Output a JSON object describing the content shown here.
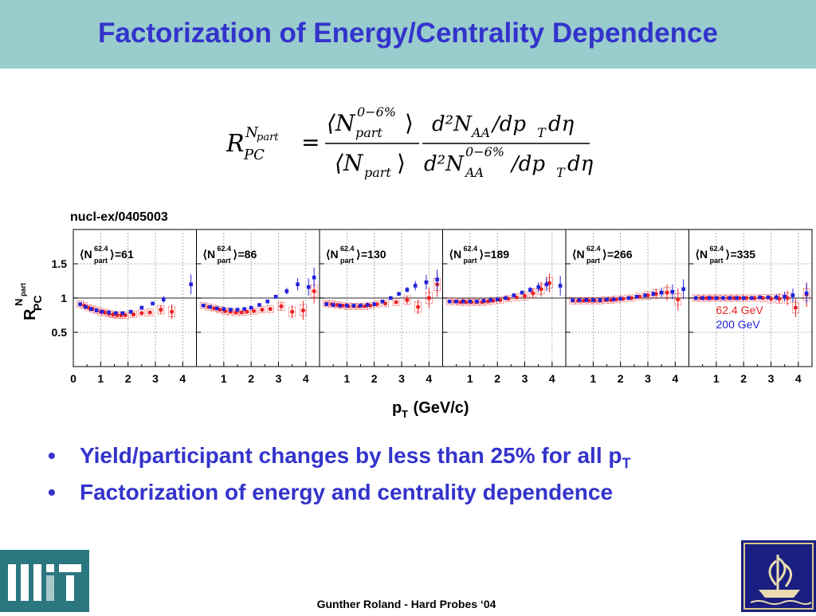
{
  "slide": {
    "title": "Factorization of Energy/Centrality Dependence",
    "reference": "nucl-ex/0405003",
    "bullets": [
      {
        "text": "Yield/participant changes by less than 25% for all p",
        "sub": "T"
      },
      {
        "text": "Factorization of energy and centrality dependence",
        "sub": ""
      }
    ],
    "footer": "Gunther Roland - Hard Probes ‘04"
  },
  "formula": {
    "lhs_base": "R",
    "lhs_sub": "PC",
    "lhs_sup": "N",
    "lhs_sup_sub": "part",
    "eq": "=",
    "num1": "⟨N",
    "num1_sup": "0−6%",
    "num1_sub": "part",
    "num1_close": "⟩",
    "den1": "⟨N",
    "den1_sub": "part",
    "den1_close": "⟩",
    "num2": "d²N",
    "num2_sub": "AA",
    "num2_rest": "/dp",
    "num2_rest_sub": "T",
    "num2_end": "dη",
    "den2": "d²N",
    "den2_sup": "0−6%",
    "den2_sub": "AA",
    "den2_rest": "/dp",
    "den2_rest_sub": "T",
    "den2_end": "dη"
  },
  "logos": {
    "left": "mit-logo",
    "right": "ship-logo"
  },
  "colors": {
    "title_bg": "#99cccc",
    "title_text": "#3333cc",
    "red": "#ee2222",
    "blue": "#2222dd",
    "mit": "#2b7780",
    "ship_bg": "#1a1e80"
  },
  "chart_data": {
    "type": "scatter",
    "ylabel_main": "R",
    "ylabel_sub": "PC",
    "ylabel_sup": "N",
    "ylabel_sup_sub": "part",
    "xlabel_main": "p",
    "xlabel_sub": "T",
    "xlabel_rest": " (GeV/c)",
    "xlim": [
      0,
      4.5
    ],
    "ylim": [
      0,
      2
    ],
    "yticks": [
      0.5,
      1,
      1.5
    ],
    "ytick_labels": [
      "0.5",
      "1",
      "1.5"
    ],
    "xtick_labels_first": [
      "0",
      "1",
      "2",
      "3",
      "4"
    ],
    "xtick_labels": [
      "1",
      "2",
      "3",
      "4"
    ],
    "reference_line": 1,
    "legend": {
      "entries": [
        "62.4 GeV",
        "200 GeV"
      ],
      "position": "right panel, lower right"
    },
    "panel_label_parts": {
      "open": "⟨N",
      "sup": "62.4",
      "sub": "part",
      "close": "⟩"
    },
    "panels": [
      {
        "npart": "=61",
        "red": [
          [
            0.25,
            0.91
          ],
          [
            0.4,
            0.89
          ],
          [
            0.55,
            0.86
          ],
          [
            0.7,
            0.84
          ],
          [
            0.85,
            0.82
          ],
          [
            1.0,
            0.8
          ],
          [
            1.15,
            0.79
          ],
          [
            1.3,
            0.77
          ],
          [
            1.45,
            0.76
          ],
          [
            1.6,
            0.75
          ],
          [
            1.75,
            0.75
          ],
          [
            1.9,
            0.75
          ],
          [
            2.2,
            0.76
          ],
          [
            2.5,
            0.78
          ],
          [
            2.8,
            0.79
          ],
          [
            3.2,
            0.83
          ],
          [
            3.6,
            0.8
          ]
        ],
        "blue": [
          [
            0.25,
            0.91
          ],
          [
            0.45,
            0.87
          ],
          [
            0.65,
            0.84
          ],
          [
            0.85,
            0.82
          ],
          [
            1.05,
            0.8
          ],
          [
            1.3,
            0.79
          ],
          [
            1.55,
            0.78
          ],
          [
            1.8,
            0.78
          ],
          [
            2.1,
            0.8
          ],
          [
            2.5,
            0.86
          ],
          [
            2.9,
            0.92
          ],
          [
            3.3,
            0.98
          ],
          [
            4.3,
            1.2
          ]
        ]
      },
      {
        "npart": "=86",
        "red": [
          [
            0.25,
            0.89
          ],
          [
            0.45,
            0.87
          ],
          [
            0.65,
            0.85
          ],
          [
            0.85,
            0.83
          ],
          [
            1.05,
            0.81
          ],
          [
            1.25,
            0.8
          ],
          [
            1.45,
            0.79
          ],
          [
            1.65,
            0.79
          ],
          [
            1.85,
            0.8
          ],
          [
            2.1,
            0.81
          ],
          [
            2.4,
            0.83
          ],
          [
            2.7,
            0.84
          ],
          [
            3.1,
            0.88
          ],
          [
            3.5,
            0.8
          ],
          [
            3.9,
            0.82
          ],
          [
            4.3,
            1.1
          ]
        ],
        "blue": [
          [
            0.25,
            0.89
          ],
          [
            0.5,
            0.87
          ],
          [
            0.75,
            0.85
          ],
          [
            1.0,
            0.84
          ],
          [
            1.25,
            0.83
          ],
          [
            1.5,
            0.83
          ],
          [
            1.75,
            0.84
          ],
          [
            2.0,
            0.86
          ],
          [
            2.3,
            0.9
          ],
          [
            2.6,
            0.95
          ],
          [
            2.9,
            1.02
          ],
          [
            3.3,
            1.1
          ],
          [
            3.7,
            1.2
          ],
          [
            4.1,
            1.16
          ],
          [
            4.3,
            1.3
          ]
        ]
      },
      {
        "npart": "=130",
        "red": [
          [
            0.25,
            0.92
          ],
          [
            0.45,
            0.91
          ],
          [
            0.65,
            0.9
          ],
          [
            0.85,
            0.89
          ],
          [
            1.05,
            0.88
          ],
          [
            1.25,
            0.88
          ],
          [
            1.45,
            0.88
          ],
          [
            1.65,
            0.88
          ],
          [
            1.85,
            0.89
          ],
          [
            2.1,
            0.91
          ],
          [
            2.4,
            0.92
          ],
          [
            2.8,
            0.94
          ],
          [
            3.2,
            0.97
          ],
          [
            3.6,
            0.87
          ],
          [
            4.0,
            1.0
          ],
          [
            4.3,
            1.2
          ]
        ],
        "blue": [
          [
            0.25,
            0.91
          ],
          [
            0.5,
            0.9
          ],
          [
            0.75,
            0.89
          ],
          [
            1.0,
            0.89
          ],
          [
            1.25,
            0.89
          ],
          [
            1.5,
            0.89
          ],
          [
            1.75,
            0.9
          ],
          [
            2.0,
            0.91
          ],
          [
            2.3,
            0.95
          ],
          [
            2.6,
            1.0
          ],
          [
            2.9,
            1.06
          ],
          [
            3.2,
            1.12
          ],
          [
            3.5,
            1.18
          ],
          [
            3.9,
            1.23
          ],
          [
            4.3,
            1.27
          ]
        ]
      },
      {
        "npart": "=189",
        "red": [
          [
            0.25,
            0.95
          ],
          [
            0.45,
            0.95
          ],
          [
            0.65,
            0.94
          ],
          [
            0.85,
            0.94
          ],
          [
            1.05,
            0.94
          ],
          [
            1.25,
            0.94
          ],
          [
            1.45,
            0.94
          ],
          [
            1.65,
            0.95
          ],
          [
            1.85,
            0.96
          ],
          [
            2.1,
            0.97
          ],
          [
            2.4,
            0.99
          ],
          [
            2.7,
            1.01
          ],
          [
            3.0,
            1.03
          ],
          [
            3.3,
            1.07
          ],
          [
            3.6,
            1.13
          ],
          [
            3.9,
            1.22
          ]
        ],
        "blue": [
          [
            0.25,
            0.95
          ],
          [
            0.5,
            0.95
          ],
          [
            0.75,
            0.95
          ],
          [
            1.0,
            0.95
          ],
          [
            1.25,
            0.95
          ],
          [
            1.5,
            0.96
          ],
          [
            1.75,
            0.97
          ],
          [
            2.0,
            0.98
          ],
          [
            2.3,
            1.0
          ],
          [
            2.6,
            1.04
          ],
          [
            2.9,
            1.08
          ],
          [
            3.2,
            1.12
          ],
          [
            3.5,
            1.16
          ],
          [
            3.8,
            1.2
          ],
          [
            4.3,
            1.18
          ]
        ]
      },
      {
        "npart": "=266",
        "red": [
          [
            0.25,
            0.96
          ],
          [
            0.45,
            0.96
          ],
          [
            0.65,
            0.96
          ],
          [
            0.85,
            0.96
          ],
          [
            1.05,
            0.96
          ],
          [
            1.25,
            0.96
          ],
          [
            1.45,
            0.97
          ],
          [
            1.65,
            0.97
          ],
          [
            1.85,
            0.98
          ],
          [
            2.1,
            0.99
          ],
          [
            2.4,
            1.0
          ],
          [
            2.7,
            1.02
          ],
          [
            3.0,
            1.04
          ],
          [
            3.3,
            1.06
          ],
          [
            3.7,
            1.08
          ],
          [
            4.1,
            0.98
          ]
        ],
        "blue": [
          [
            0.25,
            0.97
          ],
          [
            0.5,
            0.97
          ],
          [
            0.75,
            0.97
          ],
          [
            1.0,
            0.97
          ],
          [
            1.25,
            0.97
          ],
          [
            1.5,
            0.98
          ],
          [
            1.75,
            0.98
          ],
          [
            2.0,
            0.99
          ],
          [
            2.3,
            1.0
          ],
          [
            2.6,
            1.02
          ],
          [
            2.9,
            1.04
          ],
          [
            3.2,
            1.06
          ],
          [
            3.5,
            1.08
          ],
          [
            3.9,
            1.09
          ],
          [
            4.3,
            1.13
          ]
        ]
      },
      {
        "npart": "=335",
        "red": [
          [
            0.25,
            1.0
          ],
          [
            0.45,
            1.0
          ],
          [
            0.65,
            1.0
          ],
          [
            0.85,
            1.0
          ],
          [
            1.05,
            1.0
          ],
          [
            1.25,
            1.0
          ],
          [
            1.45,
            1.0
          ],
          [
            1.65,
            1.0
          ],
          [
            1.85,
            1.0
          ],
          [
            2.1,
            1.0
          ],
          [
            2.4,
            1.0
          ],
          [
            2.7,
            1.0
          ],
          [
            3.0,
            0.99
          ],
          [
            3.3,
            0.99
          ],
          [
            3.6,
            1.0
          ],
          [
            3.9,
            0.86
          ],
          [
            4.3,
            1.05
          ]
        ],
        "blue": [
          [
            0.25,
            1.0
          ],
          [
            0.5,
            1.0
          ],
          [
            0.75,
            1.0
          ],
          [
            1.0,
            1.0
          ],
          [
            1.25,
            1.0
          ],
          [
            1.5,
            1.0
          ],
          [
            1.75,
            1.0
          ],
          [
            2.0,
            1.0
          ],
          [
            2.3,
            1.0
          ],
          [
            2.6,
            1.01
          ],
          [
            2.9,
            1.01
          ],
          [
            3.2,
            1.01
          ],
          [
            3.5,
            1.02
          ],
          [
            3.8,
            1.04
          ],
          [
            4.3,
            1.07
          ]
        ]
      }
    ]
  }
}
